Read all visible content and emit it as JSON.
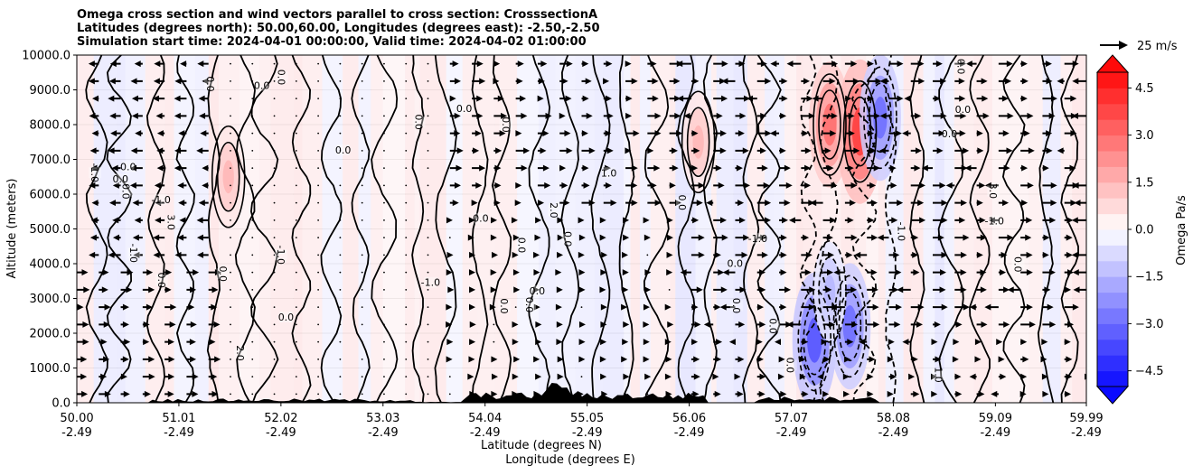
{
  "chart_data": {
    "type": "contour",
    "title": [
      "Omega cross section and wind vectors parallel to cross section: CrosssectionA",
      "Latitudes (degrees north): 50.00,60.00, Longitudes (degrees east): -2.50,-2.50",
      "Simulation start time: 2024-04-01 00:00:00, Valid time: 2024-04-02 01:00:00"
    ],
    "xlabel_lat": "Latitude (degrees N)",
    "xlabel_lon": "Longitude (degrees E)",
    "ylabel": "Altitude (meters)",
    "x_ticks": [
      {
        "lat": "50.00",
        "lon": "-2.49"
      },
      {
        "lat": "51.01",
        "lon": "-2.49"
      },
      {
        "lat": "52.02",
        "lon": "-2.49"
      },
      {
        "lat": "53.03",
        "lon": "-2.49"
      },
      {
        "lat": "54.04",
        "lon": "-2.49"
      },
      {
        "lat": "55.05",
        "lon": "-2.49"
      },
      {
        "lat": "56.06",
        "lon": "-2.49"
      },
      {
        "lat": "57.07",
        "lon": "-2.49"
      },
      {
        "lat": "58.08",
        "lon": "-2.49"
      },
      {
        "lat": "59.09",
        "lon": "-2.49"
      },
      {
        "lat": "59.99",
        "lon": "-2.49"
      }
    ],
    "xlim": [
      50.0,
      59.99
    ],
    "y_ticks": [
      "0.0",
      "1000.0",
      "2000.0",
      "3000.0",
      "4000.0",
      "5000.0",
      "6000.0",
      "7000.0",
      "8000.0",
      "9000.0",
      "10000.0"
    ],
    "ylim": [
      0,
      10000
    ],
    "grid": "horizontal",
    "colorbar": {
      "label": "Omega Pa/s",
      "range": [
        -5.0,
        5.0
      ],
      "ticks": [
        "4.5",
        "3.0",
        "1.5",
        "0.0",
        "−1.5",
        "−3.0",
        "−4.5"
      ],
      "tick_values": [
        4.5,
        3.0,
        1.5,
        0.0,
        -1.5,
        -3.0,
        -4.5
      ],
      "extend": "both"
    },
    "vector_key": "25 m/s",
    "contour_levels": [
      -2.0,
      -1.0,
      0.0,
      1.0,
      2.0,
      3.0
    ],
    "regions": [
      {
        "type": "positive",
        "lat": 51.5,
        "alt": 6500,
        "value": 1.5
      },
      {
        "type": "positive",
        "lat": 56.15,
        "alt": 7500,
        "value": 1.5
      },
      {
        "type": "positive",
        "lat": 57.45,
        "alt": 8000,
        "value": 3.0
      },
      {
        "type": "positive",
        "lat": 57.75,
        "alt": 7800,
        "value": 4.0
      },
      {
        "type": "negative",
        "lat": 57.3,
        "alt": 1800,
        "value": -3.5
      },
      {
        "type": "negative",
        "lat": 57.65,
        "alt": 2200,
        "value": -3.0
      },
      {
        "type": "negative",
        "lat": 57.95,
        "alt": 8200,
        "value": -3.0
      },
      {
        "type": "negative",
        "lat": 57.45,
        "alt": 3200,
        "value": -1.5
      }
    ],
    "contour_labels": [
      "0.0",
      "0.0",
      "0.0",
      "0.0",
      "0.0",
      "0.0",
      "0.0",
      "0.0",
      "0.0",
      "0.0",
      "0.0",
      "0.0",
      "0.0",
      "0.0",
      "0.0",
      "0.0",
      "0.0",
      "0.0",
      "0.0",
      "0.0",
      "0.0",
      "0.0",
      "0.0",
      "0.0",
      "0.0",
      "0.0",
      "0.0",
      "0.0",
      "-1.0",
      "-1.0",
      "-1.0",
      "-1.0",
      "-1.0",
      "-1.0",
      "-1.0",
      "-1.0",
      "1.0",
      "1.0",
      "2.0",
      "2.0",
      "3.0",
      "3.0"
    ],
    "terrain_peak_lat": 54.75,
    "terrain_peak_alt": 600
  }
}
